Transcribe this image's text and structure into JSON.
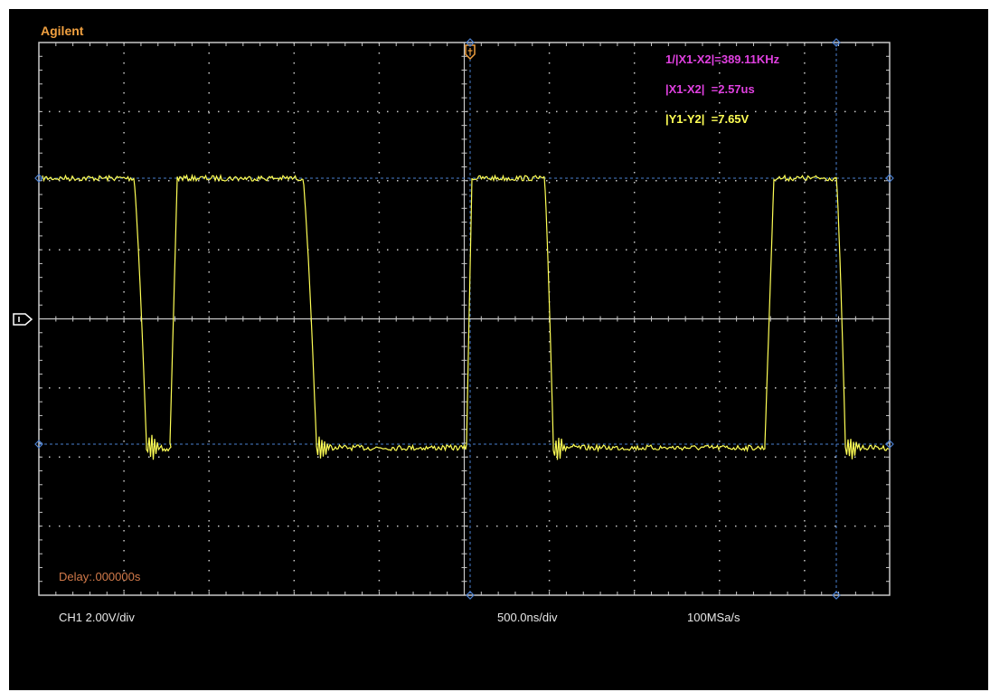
{
  "brand": "Agilent",
  "measurements": {
    "freq": "1/|X1-X2|=389.11KHz",
    "dx": "|X1-X2|  =2.57us",
    "dy": "|Y1-Y2|  =7.65V"
  },
  "delay": "Delay:.000000s",
  "footer": {
    "channel": "CH1 2.00V/div",
    "timebase": "500.0ns/div",
    "samplerate": "100MSa/s"
  },
  "colors": {
    "trace": "#ffff55",
    "grid": "#c8c8c8",
    "measure_freq": "#e040e0",
    "measure_dy": "#ffff55",
    "cursor": "#4a7fd0"
  }
}
